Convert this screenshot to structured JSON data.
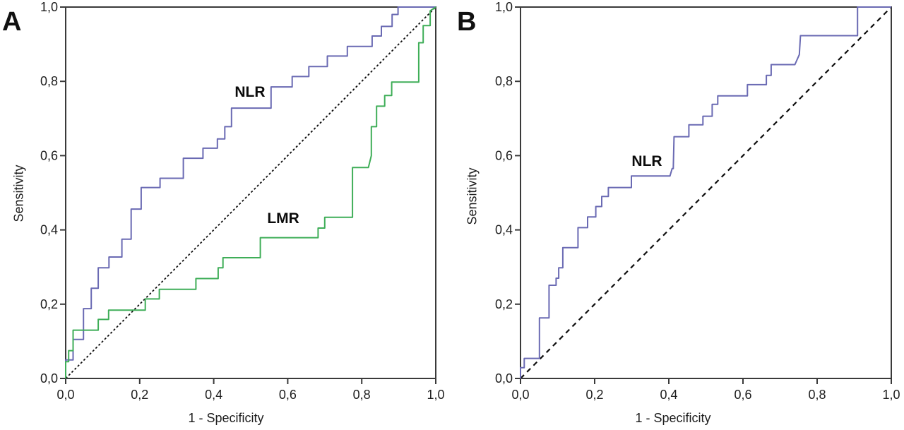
{
  "figure": {
    "background": "#ffffff",
    "axis_color": "#3a3a3a",
    "text_color": "#1d1d1d",
    "curve_stroke_width": 2
  },
  "chart_data": [
    {
      "type": "line",
      "subtype": "roc-step-curve",
      "panel_label": "A",
      "xlabel": "1 - Specificity",
      "ylabel": "Sensitivity",
      "xlim": [
        0,
        1
      ],
      "ylim": [
        0,
        1
      ],
      "grid": false,
      "legend": "inline-labels",
      "x_ticks": {
        "values": [
          0,
          0.2,
          0.4,
          0.6,
          0.8,
          1.0
        ],
        "labels": [
          "0,0",
          "0,2",
          "0,4",
          "0,6",
          "0,8",
          "1,0"
        ]
      },
      "y_ticks": {
        "values": [
          0,
          0.2,
          0.4,
          0.6,
          0.8,
          1.0
        ],
        "labels": [
          "0,0",
          "0,2",
          "0,4",
          "0,6",
          "0,8",
          "1,0"
        ]
      },
      "reference_line": {
        "from": [
          0,
          0
        ],
        "to": [
          1,
          1
        ],
        "style": "dotted",
        "color": "#0d0d0d"
      },
      "series": [
        {
          "name": "NLR",
          "color": "#6a6ab3",
          "label_pos": [
            0.498,
            0.77
          ],
          "points": [
            [
              0,
              0
            ],
            [
              0,
              0.05
            ],
            [
              0.02,
              0.05
            ],
            [
              0.02,
              0.105
            ],
            [
              0.048,
              0.105
            ],
            [
              0.048,
              0.188
            ],
            [
              0.069,
              0.188
            ],
            [
              0.069,
              0.243
            ],
            [
              0.088,
              0.243
            ],
            [
              0.088,
              0.298
            ],
            [
              0.117,
              0.298
            ],
            [
              0.117,
              0.327
            ],
            [
              0.152,
              0.327
            ],
            [
              0.152,
              0.375
            ],
            [
              0.177,
              0.375
            ],
            [
              0.177,
              0.456
            ],
            [
              0.204,
              0.456
            ],
            [
              0.204,
              0.514
            ],
            [
              0.255,
              0.514
            ],
            [
              0.255,
              0.539
            ],
            [
              0.318,
              0.539
            ],
            [
              0.318,
              0.593
            ],
            [
              0.371,
              0.593
            ],
            [
              0.371,
              0.62
            ],
            [
              0.41,
              0.62
            ],
            [
              0.41,
              0.645
            ],
            [
              0.43,
              0.645
            ],
            [
              0.43,
              0.678
            ],
            [
              0.448,
              0.678
            ],
            [
              0.448,
              0.728
            ],
            [
              0.555,
              0.728
            ],
            [
              0.555,
              0.785
            ],
            [
              0.612,
              0.785
            ],
            [
              0.612,
              0.813
            ],
            [
              0.657,
              0.813
            ],
            [
              0.657,
              0.84
            ],
            [
              0.707,
              0.84
            ],
            [
              0.707,
              0.868
            ],
            [
              0.761,
              0.868
            ],
            [
              0.761,
              0.894
            ],
            [
              0.828,
              0.894
            ],
            [
              0.828,
              0.922
            ],
            [
              0.853,
              0.922
            ],
            [
              0.853,
              0.948
            ],
            [
              0.882,
              0.948
            ],
            [
              0.882,
              0.98
            ],
            [
              0.898,
              0.98
            ],
            [
              0.898,
              1
            ],
            [
              1,
              1
            ]
          ]
        },
        {
          "name": "LMR",
          "color": "#3fae58",
          "label_pos": [
            0.588,
            0.43
          ],
          "points": [
            [
              0,
              0
            ],
            [
              0,
              0.045
            ],
            [
              0.008,
              0.045
            ],
            [
              0.008,
              0.075
            ],
            [
              0.02,
              0.075
            ],
            [
              0.02,
              0.13
            ],
            [
              0.088,
              0.13
            ],
            [
              0.088,
              0.159
            ],
            [
              0.116,
              0.159
            ],
            [
              0.116,
              0.184
            ],
            [
              0.215,
              0.184
            ],
            [
              0.215,
              0.214
            ],
            [
              0.253,
              0.214
            ],
            [
              0.253,
              0.24
            ],
            [
              0.352,
              0.24
            ],
            [
              0.352,
              0.269
            ],
            [
              0.412,
              0.269
            ],
            [
              0.412,
              0.298
            ],
            [
              0.425,
              0.298
            ],
            [
              0.425,
              0.325
            ],
            [
              0.526,
              0.325
            ],
            [
              0.526,
              0.379
            ],
            [
              0.682,
              0.379
            ],
            [
              0.682,
              0.405
            ],
            [
              0.7,
              0.405
            ],
            [
              0.7,
              0.434
            ],
            [
              0.775,
              0.434
            ],
            [
              0.775,
              0.568
            ],
            [
              0.818,
              0.568
            ],
            [
              0.826,
              0.6
            ],
            [
              0.826,
              0.678
            ],
            [
              0.84,
              0.678
            ],
            [
              0.84,
              0.733
            ],
            [
              0.862,
              0.733
            ],
            [
              0.862,
              0.762
            ],
            [
              0.881,
              0.762
            ],
            [
              0.881,
              0.798
            ],
            [
              0.954,
              0.798
            ],
            [
              0.954,
              0.904
            ],
            [
              0.966,
              0.904
            ],
            [
              0.966,
              0.95
            ],
            [
              0.985,
              0.95
            ],
            [
              0.985,
              0.99
            ],
            [
              1,
              1
            ]
          ]
        }
      ]
    },
    {
      "type": "line",
      "subtype": "roc-step-curve",
      "panel_label": "B",
      "xlabel": "1 - Specificity",
      "ylabel": "Sensitivity",
      "xlim": [
        0,
        1
      ],
      "ylim": [
        0,
        1
      ],
      "grid": false,
      "legend": "inline-labels",
      "x_ticks": {
        "values": [
          0,
          0.2,
          0.4,
          0.6,
          0.8,
          1.0
        ],
        "labels": [
          "0,0",
          "0,2",
          "0,4",
          "0,6",
          "0,8",
          "1,0"
        ]
      },
      "y_ticks": {
        "values": [
          0,
          0.2,
          0.4,
          0.6,
          0.8,
          1.0
        ],
        "labels": [
          "0,0",
          "0,2",
          "0,4",
          "0,6",
          "0,8",
          "1,0"
        ]
      },
      "reference_line": {
        "from": [
          0,
          0
        ],
        "to": [
          1,
          1
        ],
        "style": "dashed",
        "color": "#0d0d0d"
      },
      "series": [
        {
          "name": "NLR",
          "color": "#6a6ab3",
          "label_pos": [
            0.341,
            0.584
          ],
          "points": [
            [
              0,
              0
            ],
            [
              0,
              0.029
            ],
            [
              0.01,
              0.029
            ],
            [
              0.01,
              0.054
            ],
            [
              0.051,
              0.054
            ],
            [
              0.051,
              0.163
            ],
            [
              0.077,
              0.163
            ],
            [
              0.077,
              0.251
            ],
            [
              0.096,
              0.251
            ],
            [
              0.096,
              0.27
            ],
            [
              0.103,
              0.27
            ],
            [
              0.103,
              0.298
            ],
            [
              0.114,
              0.298
            ],
            [
              0.114,
              0.352
            ],
            [
              0.155,
              0.352
            ],
            [
              0.155,
              0.406
            ],
            [
              0.181,
              0.406
            ],
            [
              0.181,
              0.435
            ],
            [
              0.203,
              0.435
            ],
            [
              0.203,
              0.463
            ],
            [
              0.219,
              0.463
            ],
            [
              0.219,
              0.49
            ],
            [
              0.237,
              0.49
            ],
            [
              0.237,
              0.514
            ],
            [
              0.299,
              0.514
            ],
            [
              0.299,
              0.545
            ],
            [
              0.398,
              0.545
            ],
            [
              0.403,
              0.545
            ],
            [
              0.409,
              0.565
            ],
            [
              0.412,
              0.565
            ],
            [
              0.414,
              0.651
            ],
            [
              0.454,
              0.651
            ],
            [
              0.454,
              0.683
            ],
            [
              0.492,
              0.683
            ],
            [
              0.492,
              0.706
            ],
            [
              0.517,
              0.706
            ],
            [
              0.517,
              0.738
            ],
            [
              0.532,
              0.738
            ],
            [
              0.532,
              0.761
            ],
            [
              0.612,
              0.761
            ],
            [
              0.612,
              0.791
            ],
            [
              0.663,
              0.791
            ],
            [
              0.663,
              0.816
            ],
            [
              0.676,
              0.816
            ],
            [
              0.676,
              0.845
            ],
            [
              0.74,
              0.845
            ],
            [
              0.752,
              0.872
            ],
            [
              0.755,
              0.923
            ],
            [
              0.909,
              0.923
            ],
            [
              0.909,
              1
            ],
            [
              1,
              1
            ]
          ]
        }
      ]
    }
  ]
}
